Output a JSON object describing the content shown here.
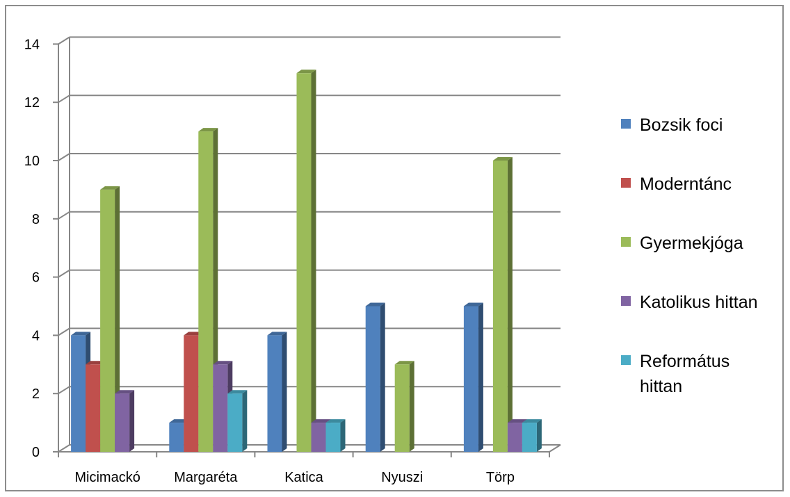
{
  "chart_data": {
    "type": "bar",
    "categories": [
      "Micimackó",
      "Margaréta",
      "Katica",
      "Nyuszi",
      "Törp"
    ],
    "series": [
      {
        "name": "Bozsik foci",
        "values": [
          4,
          1,
          4,
          5,
          5
        ],
        "color": "#4F81BD"
      },
      {
        "name": "Moderntánc",
        "values": [
          3,
          4,
          0,
          0,
          0
        ],
        "color": "#C0504D"
      },
      {
        "name": "Gyermekjóga",
        "values": [
          9,
          11,
          13,
          3,
          10
        ],
        "color": "#9BBB59"
      },
      {
        "name": "Katolikus hittan",
        "values": [
          2,
          3,
          1,
          0,
          1
        ],
        "color": "#8064A2"
      },
      {
        "name": "Református hittan",
        "values": [
          0,
          2,
          1,
          0,
          1
        ],
        "color": "#4BACC6"
      }
    ],
    "ylim": [
      0,
      14
    ],
    "yticks": [
      0,
      2,
      4,
      6,
      8,
      10,
      12,
      14
    ],
    "grid": true,
    "legend": "right",
    "style": "3d-clustered-column"
  }
}
